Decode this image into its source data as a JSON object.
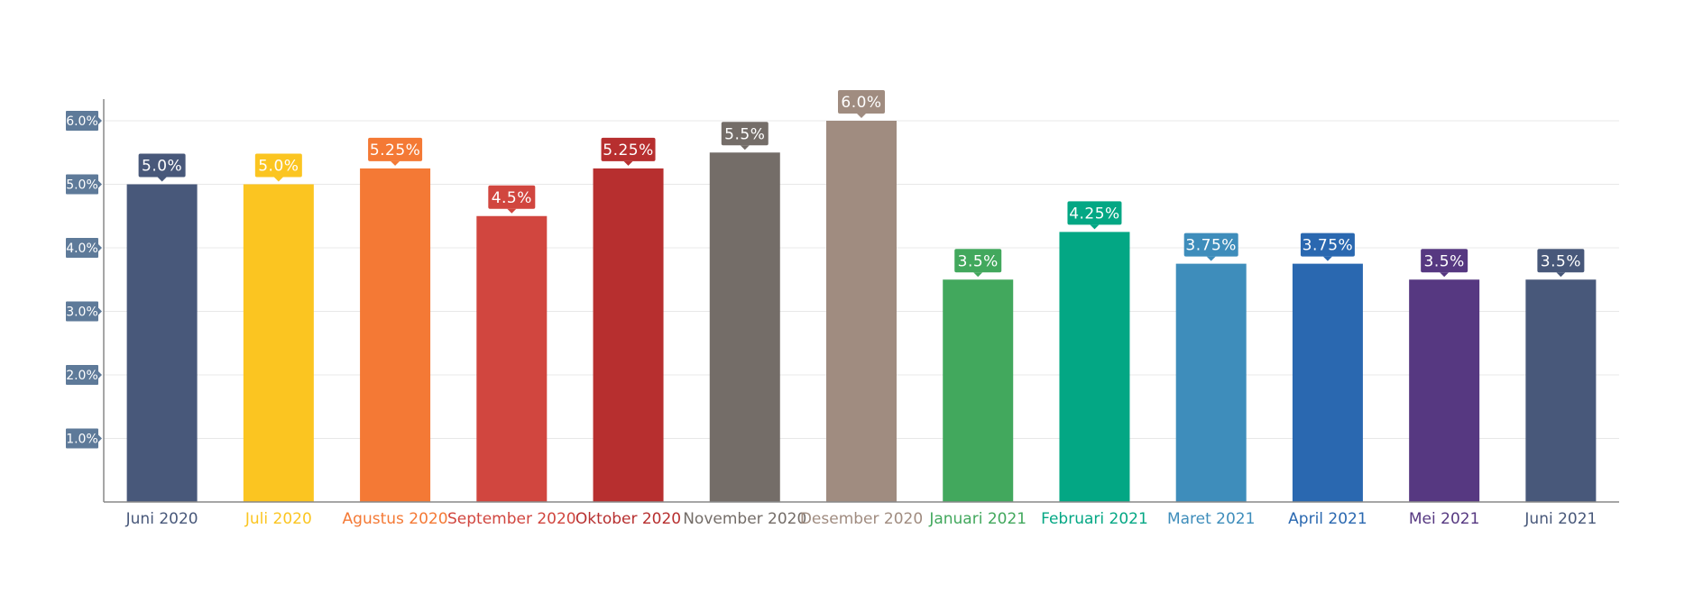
{
  "chart_data": {
    "type": "bar",
    "title": "",
    "xlabel": "",
    "ylabel": "",
    "ylim": [
      0,
      6.0
    ],
    "yticks": [
      "1.0%",
      "2.0%",
      "3.0%",
      "4.0%",
      "5.0%",
      "6.0%"
    ],
    "grid": true,
    "categories": [
      "Juni 2020",
      "Juli 2020",
      "Agustus 2020",
      "September 2020",
      "Oktober 2020",
      "November 2020",
      "Desember 2020",
      "Januari 2021",
      "Februari 2021",
      "Maret 2021",
      "April 2021",
      "Mei 2021",
      "Juni 2021"
    ],
    "values": [
      5.0,
      5.0,
      5.25,
      4.5,
      5.25,
      5.5,
      6.0,
      3.5,
      4.25,
      3.75,
      3.75,
      3.5,
      3.5
    ],
    "value_labels": [
      "5.0%",
      "5.0%",
      "5.25%",
      "4.5%",
      "5.25%",
      "5.5%",
      "6.0%",
      "3.5%",
      "4.25%",
      "3.75%",
      "3.75%",
      "3.5%",
      "3.5%"
    ],
    "colors": [
      "#48587a",
      "#fbc521",
      "#f47935",
      "#d1463f",
      "#b72f2f",
      "#746d68",
      "#a08c80",
      "#42a85d",
      "#03a784",
      "#3e8dbb",
      "#2a68b0",
      "#563881",
      "#48587a"
    ]
  }
}
